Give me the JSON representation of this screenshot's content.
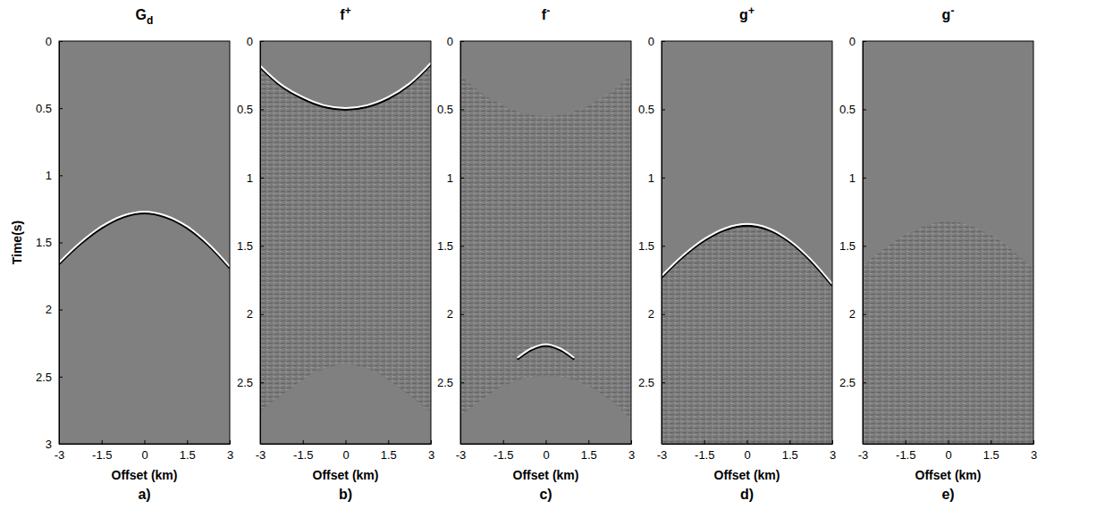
{
  "chart_data": [
    {
      "type": "image",
      "title": {
        "base": "G",
        "sub": "d"
      },
      "panel_label": "a)",
      "xlabel": "Offset (km)",
      "ylabel": "Time(s)",
      "xlim": [
        -3,
        3
      ],
      "ylim": [
        0,
        3
      ],
      "xticks": [
        -3,
        -1.5,
        0,
        1.5,
        3
      ],
      "yticks": [
        0,
        0.5,
        1,
        1.5,
        2,
        2.5,
        3
      ],
      "events": [
        {
          "x": [
            -3,
            -2.25,
            -1.5,
            -0.75,
            0,
            0.75,
            1.5,
            2.25,
            3
          ],
          "values": [
            1.65,
            1.5,
            1.38,
            1.3,
            1.27,
            1.3,
            1.38,
            1.51,
            1.68
          ]
        }
      ]
    },
    {
      "type": "image",
      "title": {
        "base": "f",
        "sup": "+"
      },
      "panel_label": "b)",
      "xlabel": "Offset (km)",
      "xlim": [
        -3,
        3
      ],
      "ylim": [
        0,
        2.95
      ],
      "xticks": [
        -3,
        -1.5,
        0,
        1.5,
        3
      ],
      "yticks": [
        0,
        0.5,
        1,
        1.5,
        2,
        2.5
      ],
      "events": [
        {
          "x": [
            -3,
            -2.25,
            -1.5,
            -0.75,
            0,
            0.75,
            1.5,
            2.25,
            3
          ],
          "values": [
            0.18,
            0.32,
            0.41,
            0.47,
            0.49,
            0.47,
            0.41,
            0.31,
            0.16
          ]
        }
      ],
      "noise": {
        "x": [
          -3,
          -2.25,
          -1.5,
          -0.75,
          0,
          0.75,
          1.5,
          2.25,
          3
        ],
        "top": [
          0.2,
          0.34,
          0.43,
          0.49,
          0.51,
          0.49,
          0.43,
          0.33,
          0.18
        ],
        "bottom": [
          2.72,
          2.6,
          2.48,
          2.4,
          2.37,
          2.4,
          2.48,
          2.6,
          2.72
        ]
      }
    },
    {
      "type": "image",
      "title": {
        "base": "f",
        "sup": "-"
      },
      "panel_label": "c)",
      "xlabel": "Offset (km)",
      "xlim": [
        -3,
        3
      ],
      "ylim": [
        0,
        2.95
      ],
      "xticks": [
        -3,
        -1.5,
        0,
        1.5,
        3
      ],
      "yticks": [
        0,
        0.5,
        1,
        1.5,
        2,
        2.5
      ],
      "events": [
        {
          "x": [
            -1,
            -0.5,
            0,
            0.5,
            1
          ],
          "values": [
            2.32,
            2.25,
            2.22,
            2.25,
            2.32
          ]
        }
      ],
      "noise": {
        "x": [
          -3,
          -2.25,
          -1.5,
          -0.75,
          0,
          0.75,
          1.5,
          2.25,
          3
        ],
        "top": [
          0.25,
          0.38,
          0.47,
          0.53,
          0.55,
          0.53,
          0.47,
          0.38,
          0.25
        ],
        "bottom": [
          2.75,
          2.63,
          2.53,
          2.47,
          2.45,
          2.47,
          2.53,
          2.63,
          2.77
        ]
      }
    },
    {
      "type": "image",
      "title": {
        "base": "g",
        "sup": "+"
      },
      "panel_label": "d)",
      "xlabel": "Offset (km)",
      "xlim": [
        -3,
        3
      ],
      "ylim": [
        0,
        2.95
      ],
      "xticks": [
        -3,
        -1.5,
        0,
        1.5,
        3
      ],
      "yticks": [
        0,
        0.5,
        1,
        1.5,
        2,
        2.5
      ],
      "events": [
        {
          "x": [
            -3,
            -2.25,
            -1.5,
            -0.75,
            0,
            0.75,
            1.5,
            2.25,
            3
          ],
          "values": [
            1.72,
            1.57,
            1.45,
            1.37,
            1.34,
            1.37,
            1.46,
            1.6,
            1.78
          ]
        }
      ],
      "noise": {
        "x": [
          -3,
          -2.25,
          -1.5,
          -0.75,
          0,
          0.75,
          1.5,
          2.25,
          3
        ],
        "top": [
          1.74,
          1.59,
          1.47,
          1.39,
          1.36,
          1.39,
          1.48,
          1.62,
          1.8
        ],
        "bottom": [
          2.95,
          2.95,
          2.95,
          2.95,
          2.95,
          2.95,
          2.95,
          2.95,
          2.95
        ]
      }
    },
    {
      "type": "image",
      "title": {
        "base": "g",
        "sup": "-"
      },
      "panel_label": "e)",
      "xlabel": "Offset (km)",
      "xlim": [
        -3,
        3
      ],
      "ylim": [
        0,
        2.95
      ],
      "xticks": [
        -3,
        -1.5,
        0,
        1.5,
        3
      ],
      "yticks": [
        0,
        0.5,
        1,
        1.5,
        2,
        2.5
      ],
      "events": [],
      "noise": {
        "x": [
          -3,
          -2.25,
          -1.5,
          -0.75,
          0,
          0.75,
          1.5,
          2.25,
          3
        ],
        "top": [
          1.65,
          1.52,
          1.42,
          1.35,
          1.32,
          1.35,
          1.42,
          1.53,
          1.67
        ],
        "bottom": [
          2.95,
          2.95,
          2.95,
          2.95,
          2.95,
          2.95,
          2.95,
          2.95,
          2.95
        ]
      }
    }
  ]
}
